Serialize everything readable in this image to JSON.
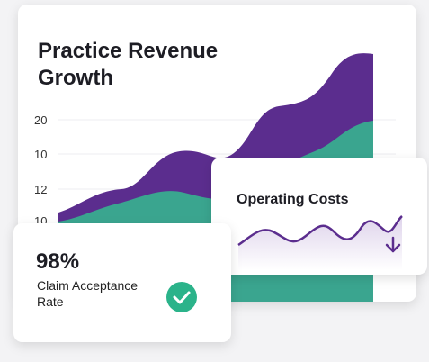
{
  "revenue_card": {
    "title_lines": [
      "Practice Revenue",
      "Growth"
    ],
    "y_labels": [
      "20",
      "10",
      "12",
      "10"
    ]
  },
  "costs_card": {
    "title": "Operating Costs"
  },
  "claims_card": {
    "value": "98%",
    "label_lines": [
      "Claim Acceptance",
      "Rate"
    ]
  }
}
